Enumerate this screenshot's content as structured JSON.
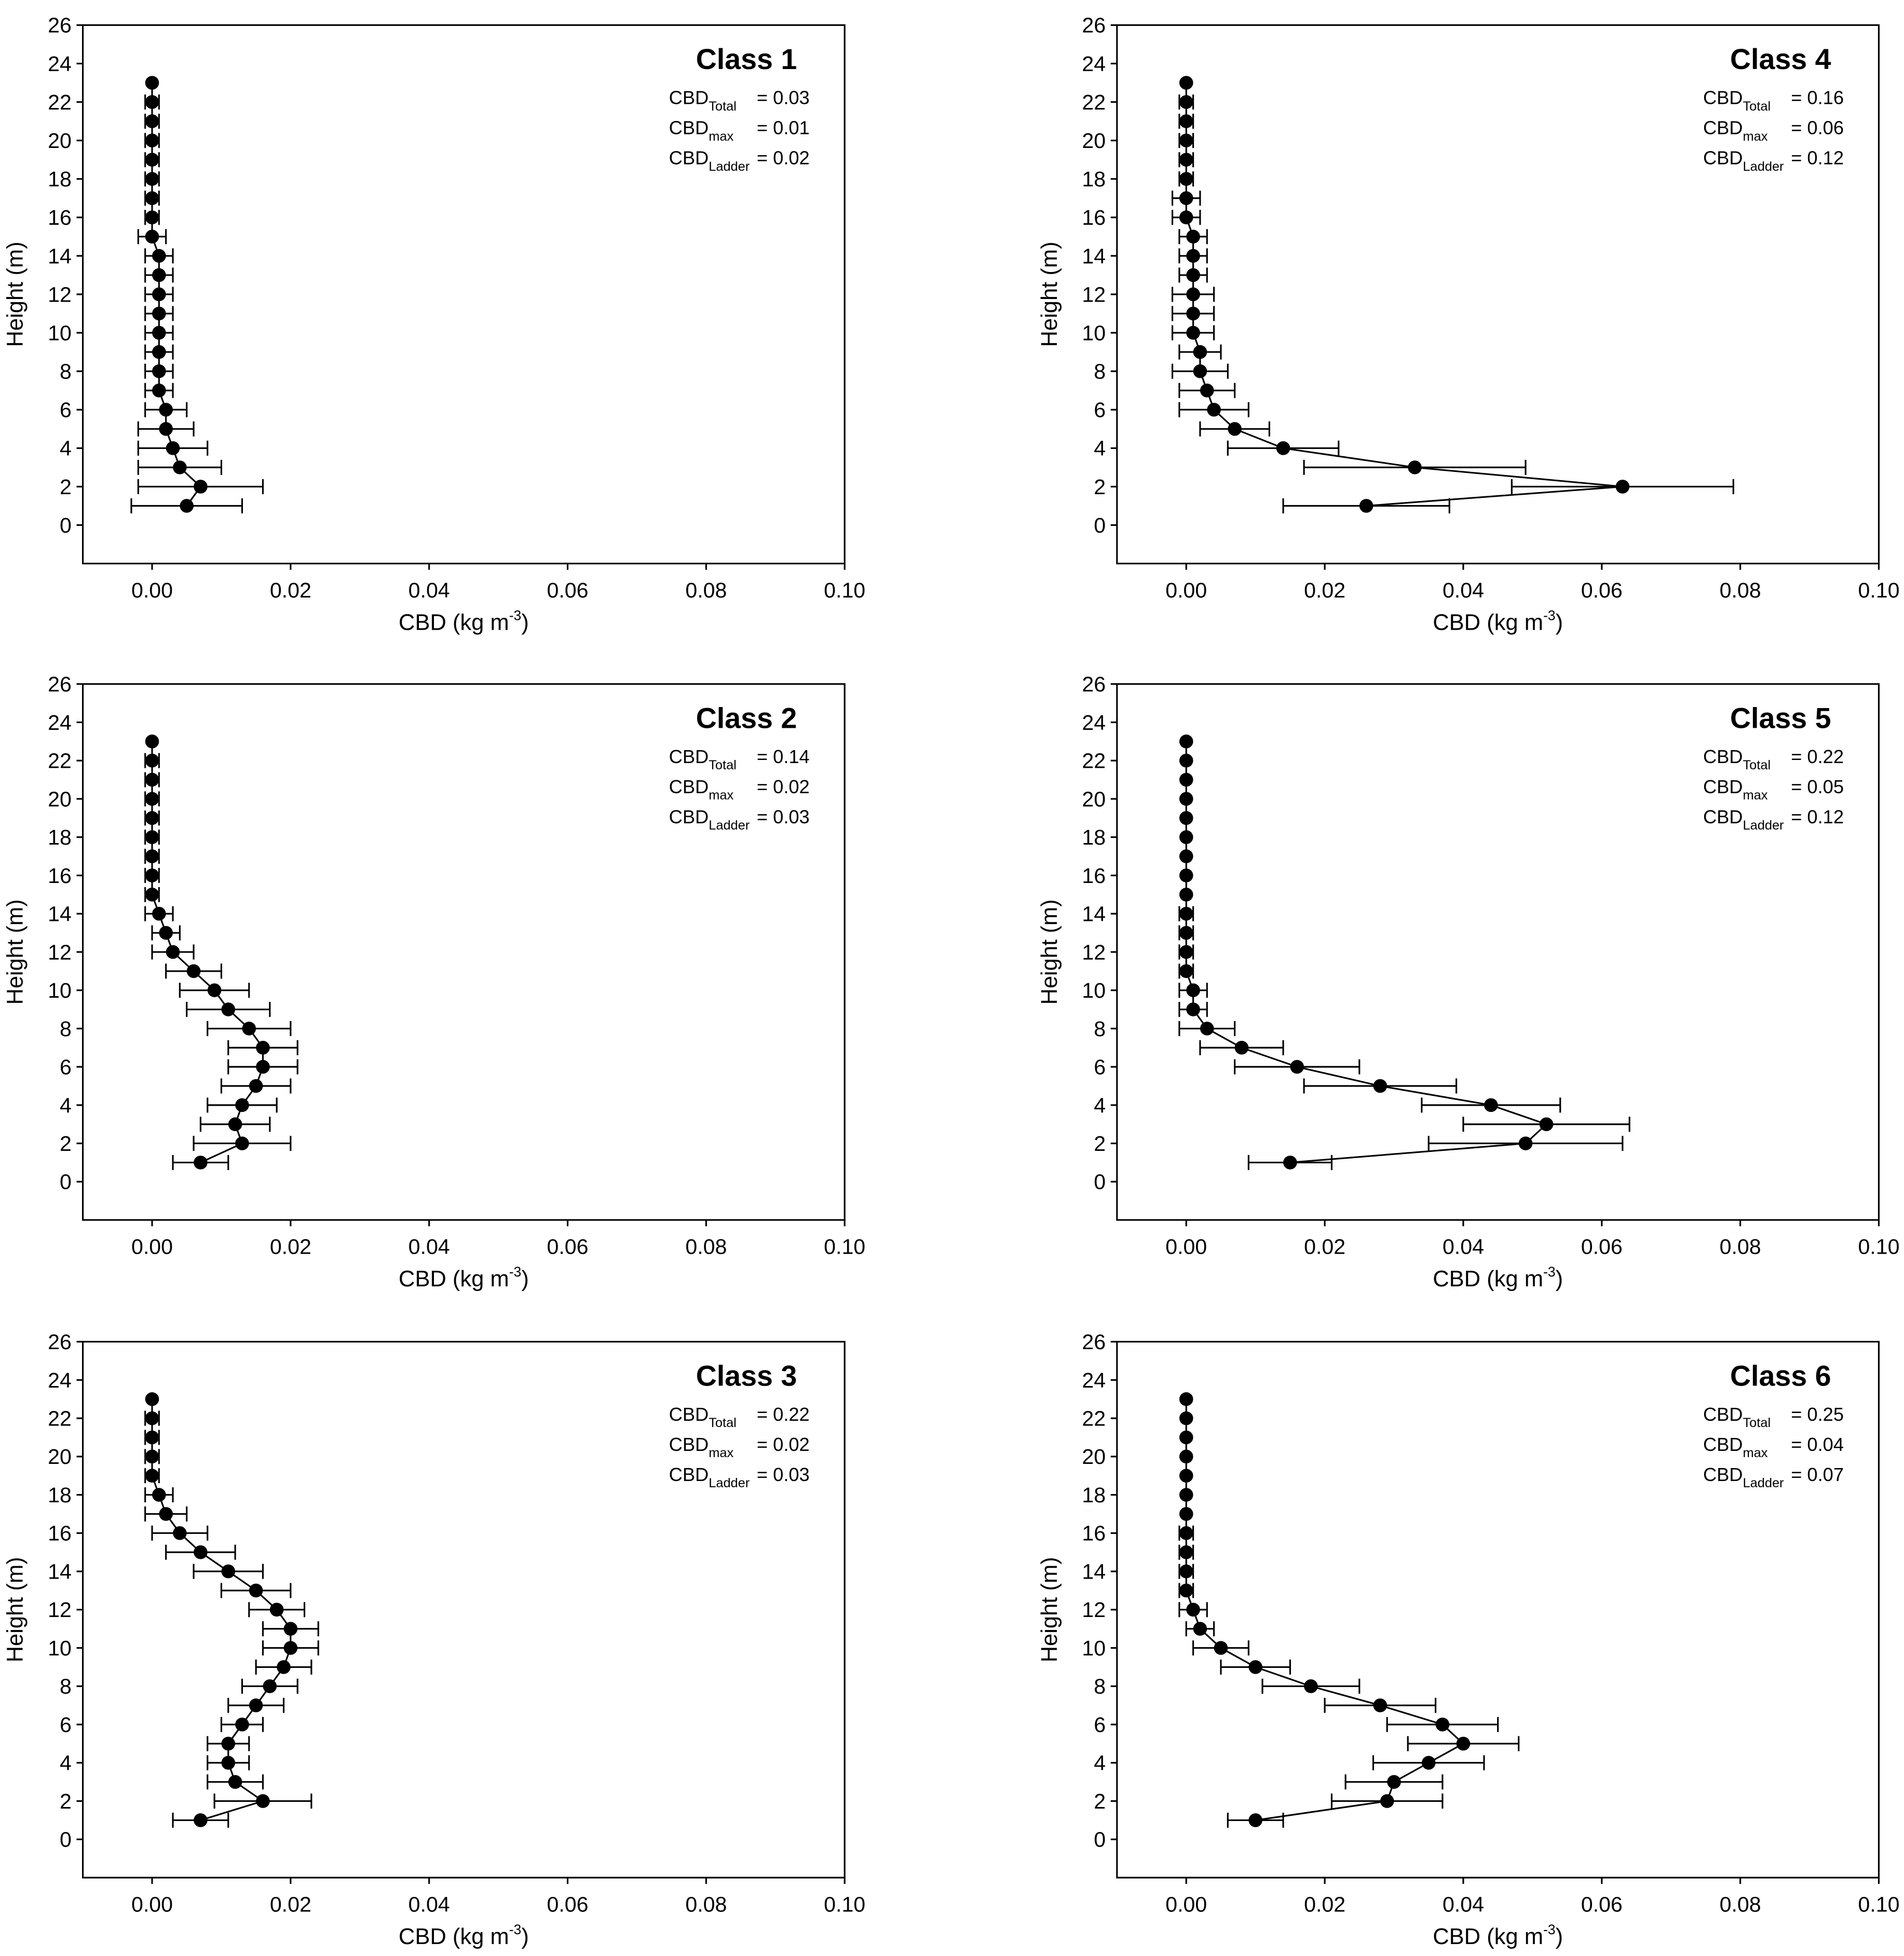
{
  "figure": {
    "x_ticks": [
      "0.00",
      "0.02",
      "0.04",
      "0.06",
      "0.08",
      "0.10"
    ],
    "y_ticks": [
      "0",
      "2",
      "4",
      "6",
      "8",
      "10",
      "12",
      "14",
      "16",
      "18",
      "20",
      "22",
      "24",
      "26"
    ],
    "xlabel_main": "CBD (kg m",
    "xlabel_sup": "-3",
    "xlabel_close": ")",
    "ylabel": "Height (m)",
    "stat_prefix": "CBD",
    "stat_subs": [
      "Total",
      "max",
      "Ladder"
    ],
    "colors": {
      "marker": "#000000",
      "line": "#000000",
      "axes": "#000000"
    }
  },
  "chart_data": [
    {
      "type": "line",
      "title": "Class 1",
      "xlim": [
        -0.01,
        0.1
      ],
      "ylim": [
        -2,
        26
      ],
      "stats": {
        "total": "= 0.03",
        "max": "= 0.01",
        "ladder": "= 0.02"
      },
      "height": [
        1,
        2,
        3,
        4,
        5,
        6,
        7,
        8,
        9,
        10,
        11,
        12,
        13,
        14,
        15,
        16,
        17,
        18,
        19,
        20,
        21,
        22,
        23
      ],
      "cbd": [
        0.005,
        0.007,
        0.004,
        0.003,
        0.002,
        0.002,
        0.001,
        0.001,
        0.001,
        0.001,
        0.001,
        0.001,
        0.001,
        0.001,
        0,
        0,
        0,
        0,
        0,
        0,
        0,
        0,
        0
      ],
      "err": [
        0.008,
        0.009,
        0.006,
        0.005,
        0.004,
        0.003,
        0.002,
        0.002,
        0.002,
        0.002,
        0.002,
        0.002,
        0.002,
        0.002,
        0.002,
        0.001,
        0.001,
        0.001,
        0.001,
        0.001,
        0.001,
        0.001,
        0
      ]
    },
    {
      "type": "line",
      "title": "Class 4",
      "xlim": [
        -0.01,
        0.1
      ],
      "ylim": [
        -2,
        26
      ],
      "stats": {
        "total": "= 0.16",
        "max": "= 0.06",
        "ladder": "= 0.12"
      },
      "height": [
        1,
        2,
        3,
        4,
        5,
        6,
        7,
        8,
        9,
        10,
        11,
        12,
        13,
        14,
        15,
        16,
        17,
        18,
        19,
        20,
        21,
        22,
        23
      ],
      "cbd": [
        0.026,
        0.063,
        0.033,
        0.014,
        0.007,
        0.004,
        0.003,
        0.002,
        0.002,
        0.001,
        0.001,
        0.001,
        0.001,
        0.001,
        0.001,
        0,
        0,
        0,
        0,
        0,
        0,
        0,
        0
      ],
      "err": [
        0.012,
        0.016,
        0.016,
        0.008,
        0.005,
        0.005,
        0.004,
        0.004,
        0.003,
        0.003,
        0.003,
        0.003,
        0.002,
        0.002,
        0.002,
        0.002,
        0.002,
        0.001,
        0.001,
        0.001,
        0.001,
        0.001,
        0
      ]
    },
    {
      "type": "line",
      "title": "Class 2",
      "xlim": [
        -0.01,
        0.1
      ],
      "ylim": [
        -2,
        26
      ],
      "stats": {
        "total": "= 0.14",
        "max": "= 0.02",
        "ladder": "= 0.03"
      },
      "height": [
        1,
        2,
        3,
        4,
        5,
        6,
        7,
        8,
        9,
        10,
        11,
        12,
        13,
        14,
        15,
        16,
        17,
        18,
        19,
        20,
        21,
        22,
        23
      ],
      "cbd": [
        0.007,
        0.013,
        0.012,
        0.013,
        0.015,
        0.016,
        0.016,
        0.014,
        0.011,
        0.009,
        0.006,
        0.003,
        0.002,
        0.001,
        0,
        0,
        0,
        0,
        0,
        0,
        0,
        0,
        0
      ],
      "err": [
        0.004,
        0.007,
        0.005,
        0.005,
        0.005,
        0.005,
        0.005,
        0.006,
        0.006,
        0.005,
        0.004,
        0.003,
        0.002,
        0.002,
        0.001,
        0.001,
        0.001,
        0.001,
        0.001,
        0.001,
        0.001,
        0.001,
        0
      ]
    },
    {
      "type": "line",
      "title": "Class 5",
      "xlim": [
        -0.01,
        0.1
      ],
      "ylim": [
        -2,
        26
      ],
      "stats": {
        "total": "= 0.22",
        "max": "= 0.05",
        "ladder": "= 0.12"
      },
      "height": [
        1,
        2,
        3,
        4,
        5,
        6,
        7,
        8,
        9,
        10,
        11,
        12,
        13,
        14,
        15,
        16,
        17,
        18,
        19,
        20,
        21,
        22,
        23
      ],
      "cbd": [
        0.015,
        0.049,
        0.052,
        0.044,
        0.028,
        0.016,
        0.008,
        0.003,
        0.001,
        0.001,
        0,
        0,
        0,
        0,
        0,
        0,
        0,
        0,
        0,
        0,
        0,
        0,
        0
      ],
      "err": [
        0.006,
        0.014,
        0.012,
        0.01,
        0.011,
        0.009,
        0.006,
        0.004,
        0.002,
        0.002,
        0.001,
        0.001,
        0.001,
        0.001,
        0,
        0,
        0,
        0,
        0,
        0,
        0,
        0,
        0
      ]
    },
    {
      "type": "line",
      "title": "Class 3",
      "xlim": [
        -0.01,
        0.1
      ],
      "ylim": [
        -2,
        26
      ],
      "stats": {
        "total": "= 0.22",
        "max": "= 0.02",
        "ladder": "= 0.03"
      },
      "height": [
        1,
        2,
        3,
        4,
        5,
        6,
        7,
        8,
        9,
        10,
        11,
        12,
        13,
        14,
        15,
        16,
        17,
        18,
        19,
        20,
        21,
        22,
        23
      ],
      "cbd": [
        0.007,
        0.016,
        0.012,
        0.011,
        0.011,
        0.013,
        0.015,
        0.017,
        0.019,
        0.02,
        0.02,
        0.018,
        0.015,
        0.011,
        0.007,
        0.004,
        0.002,
        0.001,
        0,
        0,
        0,
        0,
        0
      ],
      "err": [
        0.004,
        0.007,
        0.004,
        0.003,
        0.003,
        0.003,
        0.004,
        0.004,
        0.004,
        0.004,
        0.004,
        0.004,
        0.005,
        0.005,
        0.005,
        0.004,
        0.003,
        0.002,
        0.001,
        0.001,
        0.001,
        0.001,
        0
      ]
    },
    {
      "type": "line",
      "title": "Class 6",
      "xlim": [
        -0.01,
        0.1
      ],
      "ylim": [
        -2,
        26
      ],
      "stats": {
        "total": "= 0.25",
        "max": "= 0.04",
        "ladder": "= 0.07"
      },
      "height": [
        1,
        2,
        3,
        4,
        5,
        6,
        7,
        8,
        9,
        10,
        11,
        12,
        13,
        14,
        15,
        16,
        17,
        18,
        19,
        20,
        21,
        22,
        23
      ],
      "cbd": [
        0.01,
        0.029,
        0.03,
        0.035,
        0.04,
        0.037,
        0.028,
        0.018,
        0.01,
        0.005,
        0.002,
        0.001,
        0,
        0,
        0,
        0,
        0,
        0,
        0,
        0,
        0,
        0,
        0
      ],
      "err": [
        0.004,
        0.008,
        0.007,
        0.008,
        0.008,
        0.008,
        0.008,
        0.007,
        0.005,
        0.004,
        0.002,
        0.002,
        0.001,
        0.001,
        0.001,
        0.001,
        0,
        0,
        0,
        0,
        0,
        0,
        0
      ]
    }
  ]
}
